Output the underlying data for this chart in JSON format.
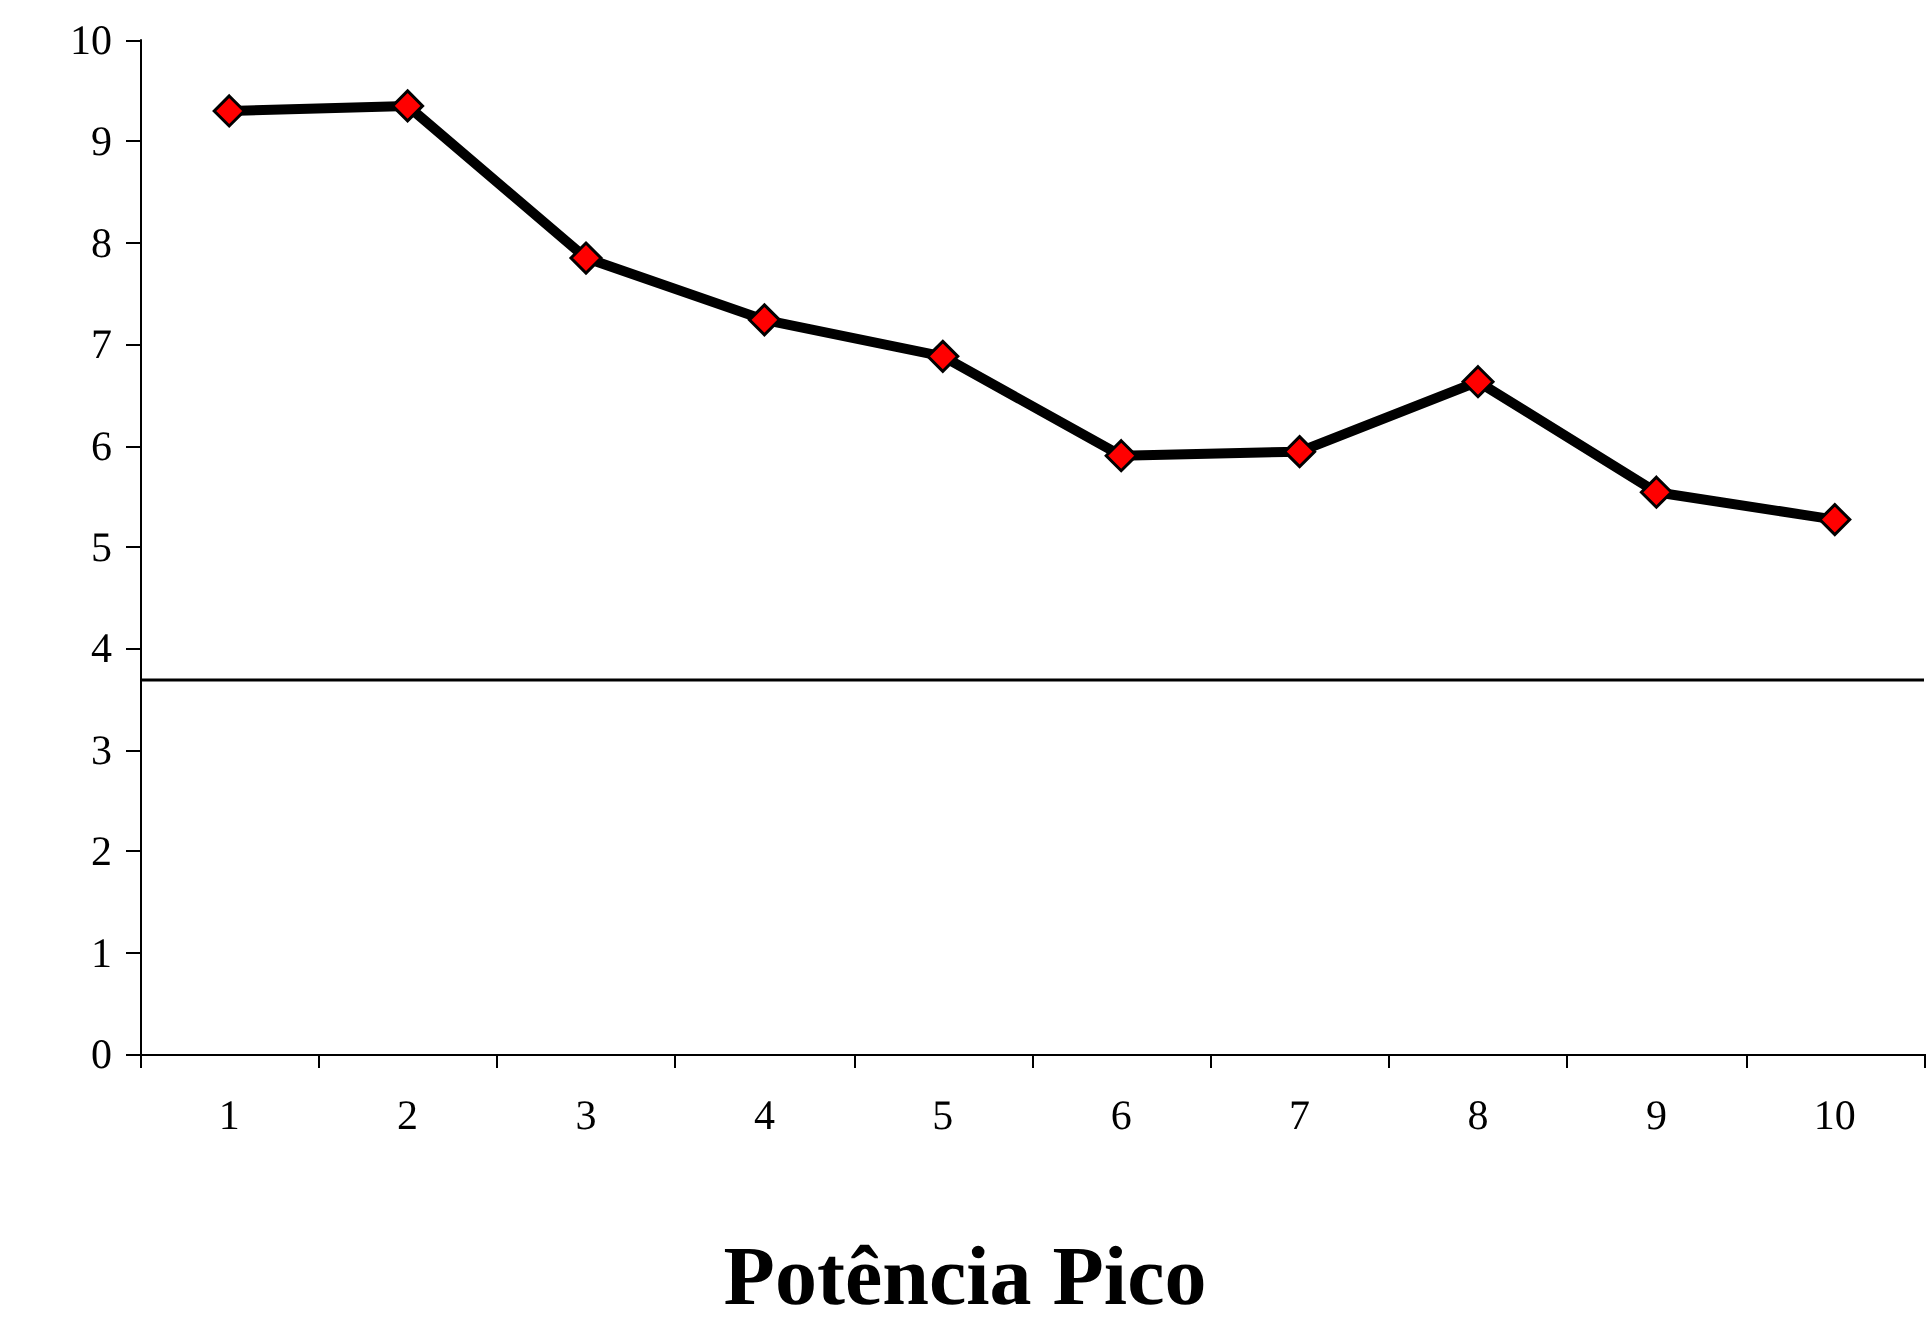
{
  "chart_data": {
    "type": "line",
    "title": "Potência Pico",
    "categories": [
      "1",
      "2",
      "3",
      "4",
      "5",
      "6",
      "7",
      "8",
      "9",
      "10"
    ],
    "series": [
      {
        "color": "#000000",
        "values": [
          9.3,
          9.35,
          7.85,
          7.24,
          6.88,
          5.9,
          5.94,
          6.63,
          5.54,
          5.27
        ]
      }
    ],
    "ylim": [
      0,
      10
    ],
    "yticks": [
      0,
      1,
      2,
      3,
      4,
      5,
      6,
      7,
      8,
      9,
      10
    ],
    "ref_lines": [
      {
        "axis": "y",
        "value": 3.7,
        "color": "#000000"
      }
    ],
    "grid": false,
    "marker": "diamond",
    "line_style": "solid"
  }
}
